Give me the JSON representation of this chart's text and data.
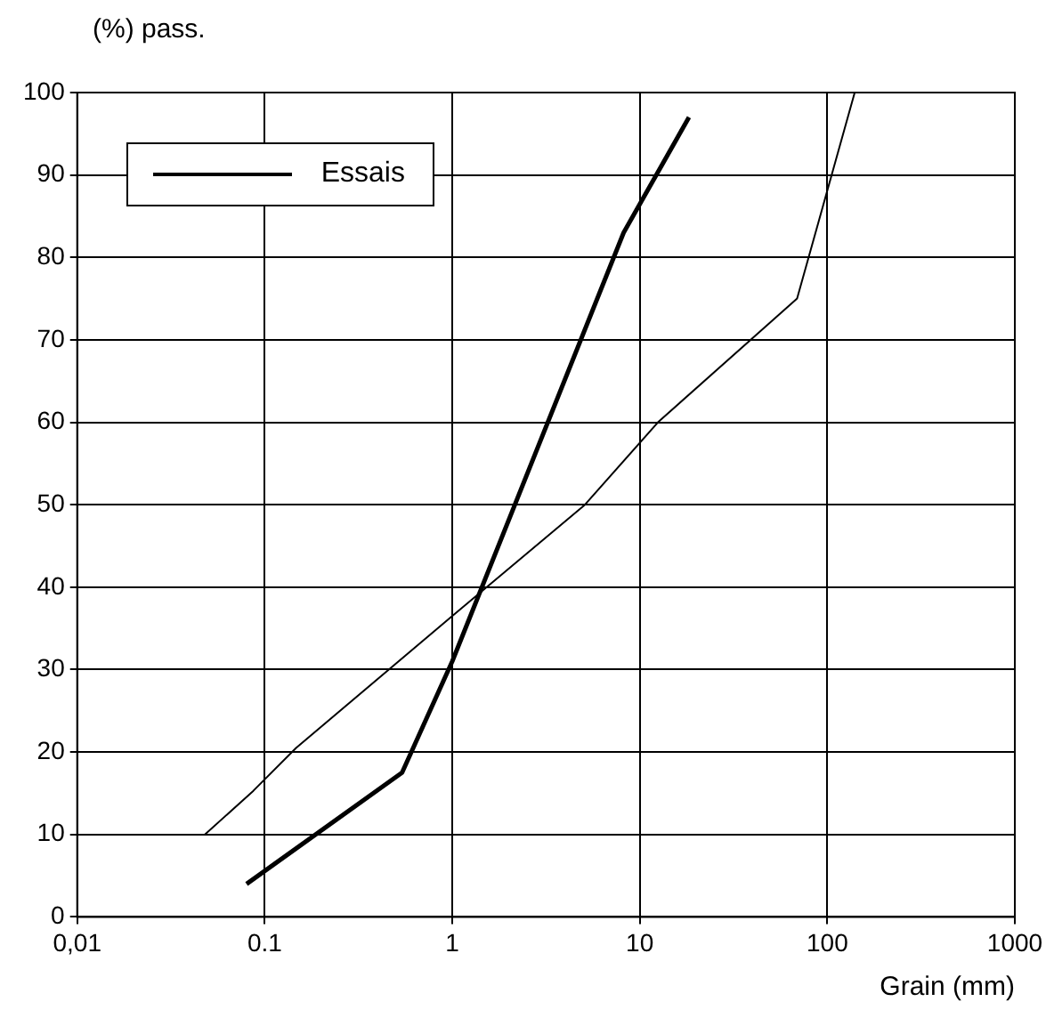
{
  "chart_data": {
    "type": "line",
    "ylabel": "(%) pass.",
    "xlabel": "Grain (mm)",
    "log": "x",
    "xlim": [
      0.01,
      1000
    ],
    "xticks": [
      {
        "value": 0.01,
        "label": "0,01"
      },
      0.1,
      1,
      10,
      100,
      1000
    ],
    "ylim": [
      0,
      100
    ],
    "yticks": [
      0,
      10,
      20,
      30,
      40,
      50,
      60,
      70,
      80,
      90,
      100
    ],
    "grid": true,
    "legend": "top left",
    "marker": "none",
    "line_style": "solid",
    "series": [
      {
        "color": "#000000",
        "x": [
          0.048,
          0.087,
          0.147,
          1,
          5.1,
          12.5,
          69,
          140
        ],
        "values": [
          10,
          15.3,
          20.5,
          36.5,
          50,
          60,
          75,
          100
        ]
      },
      {
        "name": "Essais",
        "color": "#000000",
        "x": [
          0.08,
          0.54,
          1,
          8.2,
          18.3
        ],
        "values": [
          4,
          17.5,
          31,
          83,
          97
        ]
      }
    ]
  }
}
